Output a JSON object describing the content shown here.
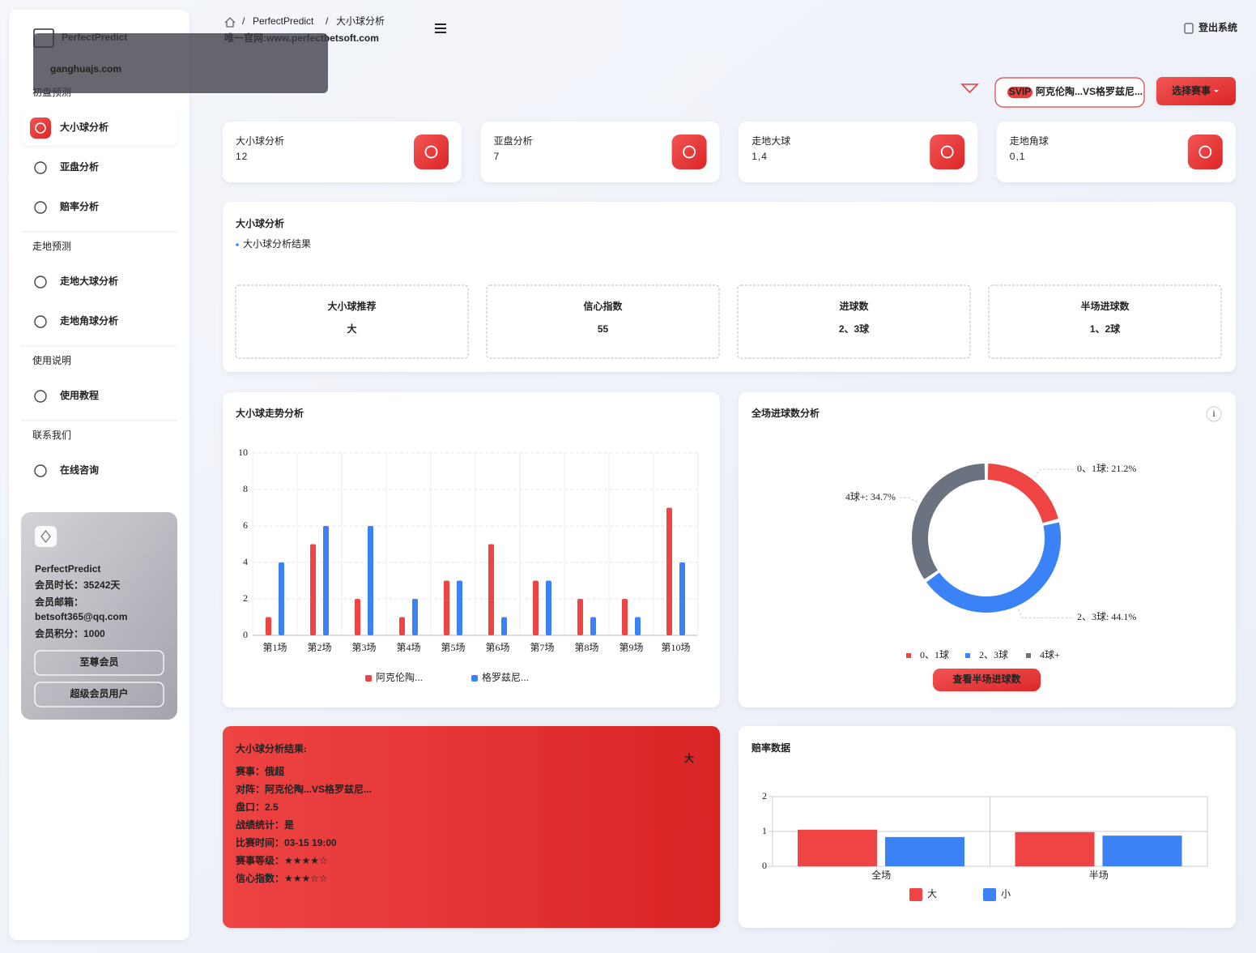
{
  "watermark": "ganghuajs.com",
  "sidebar": {
    "brand": "PerfectPredict",
    "sections": [
      {
        "title": "初盘预测",
        "items": [
          "大小球分析",
          "亚盘分析",
          "赔率分析"
        ]
      },
      {
        "title": "走地预测",
        "items": [
          "走地大球分析",
          "走地角球分析"
        ]
      },
      {
        "title": "使用说明",
        "items": [
          "使用教程"
        ]
      },
      {
        "title": "联系我们",
        "items": [
          "在线咨询"
        ]
      }
    ],
    "member": {
      "name": "PerfectPredict",
      "duration": "会员时长：35242天",
      "email_label": "会员邮箱：",
      "email": "betsoft365@qq.com",
      "points": "会员积分：1000",
      "buttons": [
        "至尊会员",
        "超级会员用户"
      ]
    }
  },
  "header": {
    "breadcrumb": [
      "PerfectPredict",
      "大小球分析"
    ],
    "separator": "/",
    "site": "唯一官网:www.perfectbetsoft.com",
    "logout": "登出系统",
    "badge": "SVIP",
    "match": "阿克伦陶...VS格罗兹尼...",
    "select": "选择赛事"
  },
  "stats": [
    {
      "label": "大小球分析",
      "value": 12,
      "color": "#e53e3e"
    },
    {
      "label": "亚盘分析",
      "value": 7,
      "color": "#e53e3e"
    },
    {
      "label": "走地大球",
      "value": "1,4",
      "color": "#e53e3e"
    },
    {
      "label": "走地角球",
      "value": "0,1",
      "color": "#3b82f6"
    }
  ],
  "analysis": {
    "title": "大小球分析",
    "subtitle": "大小球分析结果",
    "boxes": [
      {
        "label": "大小球推荐",
        "value": "大"
      },
      {
        "label": "信心指数",
        "value": 55
      },
      {
        "label": "进球数",
        "value": "2、3球"
      },
      {
        "label": "半场进球数",
        "value": "1、2球"
      }
    ]
  },
  "result": {
    "title": "大小球分析结果:",
    "badge": "大",
    "lines": [
      "赛事：俄超",
      "对阵：阿克伦陶...VS格罗兹尼...",
      "盘口：2.5",
      "战绩统计：是",
      "比赛时间：03-15 19:00",
      "赛事等级：★★★★☆",
      "信心指数：★★★☆☆"
    ]
  },
  "chart_data": [
    {
      "type": "bar",
      "title": "大小球走势分析",
      "categories": [
        "第1场",
        "第2场",
        "第3场",
        "第4场",
        "第5场",
        "第6场",
        "第7场",
        "第8场",
        "第9场",
        "第10场"
      ],
      "series": [
        {
          "name": "阿克伦陶...",
          "color": "#ef4444",
          "values": [
            1,
            5,
            2,
            1,
            3,
            5,
            3,
            2,
            2,
            7
          ]
        },
        {
          "name": "格罗兹尼...",
          "color": "#3b82f6",
          "values": [
            4,
            6,
            6,
            2,
            3,
            1,
            3,
            1,
            1,
            4
          ]
        }
      ],
      "ylim": [
        0,
        10
      ],
      "yticks": [
        0,
        2,
        4,
        6,
        8,
        10
      ],
      "grid": true
    },
    {
      "type": "pie",
      "title": "全场进球数分析",
      "info": "i",
      "categories": [
        "0、1球",
        "2、3球",
        "4球+"
      ],
      "values": [
        21.2,
        44.1,
        34.7
      ],
      "value_labels": [
        "0、1球: 21.2%",
        "2、3球: 44.1%",
        "4球+: 34.7%"
      ],
      "colors": [
        "#ef4444",
        "#3b82f6",
        "#6b7280"
      ],
      "button": "查看半场进球数"
    },
    {
      "type": "bar",
      "title": "赔率数据",
      "categories": [
        "全场",
        "半场"
      ],
      "series": [
        {
          "name": "大",
          "color": "#ef4444",
          "values": [
            1.05,
            0.98
          ]
        },
        {
          "name": "小",
          "color": "#3b82f6",
          "values": [
            0.84,
            0.88
          ]
        }
      ],
      "ylim": [
        0,
        2
      ],
      "yticks": [
        0,
        1,
        2
      ],
      "grid": true
    }
  ]
}
